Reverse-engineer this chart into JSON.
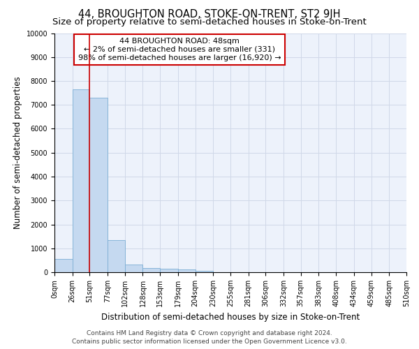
{
  "title": "44, BROUGHTON ROAD, STOKE-ON-TRENT, ST2 9JH",
  "subtitle": "Size of property relative to semi-detached houses in Stoke-on-Trent",
  "xlabel": "Distribution of semi-detached houses by size in Stoke-on-Trent",
  "ylabel": "Number of semi-detached properties",
  "footer_line1": "Contains HM Land Registry data © Crown copyright and database right 2024.",
  "footer_line2": "Contains public sector information licensed under the Open Government Licence v3.0.",
  "annotation_line1": "44 BROUGHTON ROAD: 48sqm",
  "annotation_line2": "← 2% of semi-detached houses are smaller (331)",
  "annotation_line3": "98% of semi-detached houses are larger (16,920) →",
  "property_size_bin_edge": 51,
  "bar_values": [
    550,
    7650,
    7300,
    1340,
    335,
    170,
    155,
    105,
    60,
    0,
    0,
    0,
    0,
    0,
    0,
    0,
    0,
    0,
    0,
    0
  ],
  "bin_edges": [
    0,
    26,
    51,
    77,
    102,
    128,
    153,
    179,
    204,
    230,
    255,
    281,
    306,
    332,
    357,
    383,
    408,
    434,
    459,
    485,
    510
  ],
  "bar_color": "#c5d9f0",
  "bar_edge_color": "#7badd4",
  "red_line_color": "#cc0000",
  "annotation_box_edge": "#cc0000",
  "ylim": [
    0,
    10000
  ],
  "yticks": [
    0,
    1000,
    2000,
    3000,
    4000,
    5000,
    6000,
    7000,
    8000,
    9000,
    10000
  ],
  "grid_color": "#d0d8e8",
  "background_color": "#edf2fb",
  "title_fontsize": 10.5,
  "subtitle_fontsize": 9.5,
  "axis_label_fontsize": 8.5,
  "tick_fontsize": 7,
  "annotation_fontsize": 8,
  "footer_fontsize": 6.5
}
